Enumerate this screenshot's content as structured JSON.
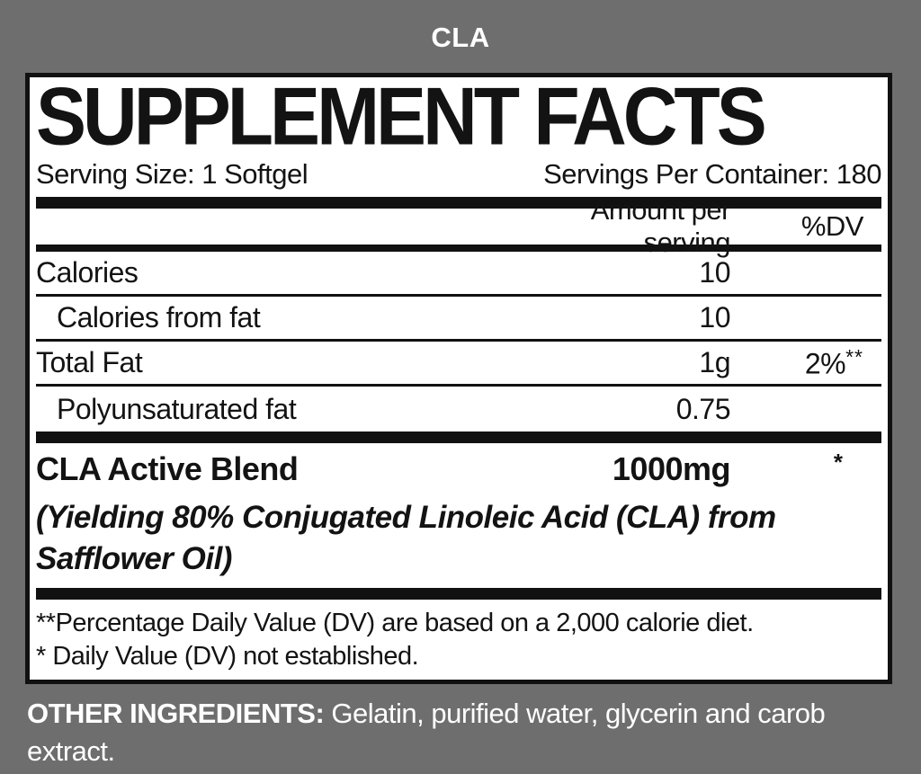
{
  "page": {
    "title": "CLA",
    "background_color": "#6e6e6e",
    "panel_color": "#ffffff",
    "text_color": "#131313"
  },
  "label": {
    "title": "SUPPLEMENT FACTS",
    "serving_size": "Serving Size: 1 Softgel",
    "servings_per_container": "Servings Per Container: 180",
    "columns": {
      "amount": "Amount per serving",
      "dv": "%DV"
    },
    "rows": [
      {
        "name": "Calories",
        "amount": "10",
        "dv": ""
      },
      {
        "name": "Calories from fat",
        "amount": "10",
        "dv": ""
      },
      {
        "name": "Total Fat",
        "amount": "1g",
        "dv": "2%",
        "dv_note": "**"
      },
      {
        "name": "Polyunsaturated fat",
        "amount": "0.75",
        "dv": ""
      }
    ],
    "blend": {
      "name": "CLA Active Blend",
      "amount": "1000mg",
      "dv_note": "*",
      "description": "(Yielding 80% Conjugated Linoleic Acid (CLA) from Safflower Oil)"
    },
    "footnotes": [
      "**Percentage Daily Value (DV) are based on a 2,000 calorie diet.",
      "* Daily Value (DV) not established."
    ]
  },
  "other_ingredients": {
    "label": "OTHER INGREDIENTS:",
    "text": " Gelatin, purified water, glycerin and carob extract."
  }
}
